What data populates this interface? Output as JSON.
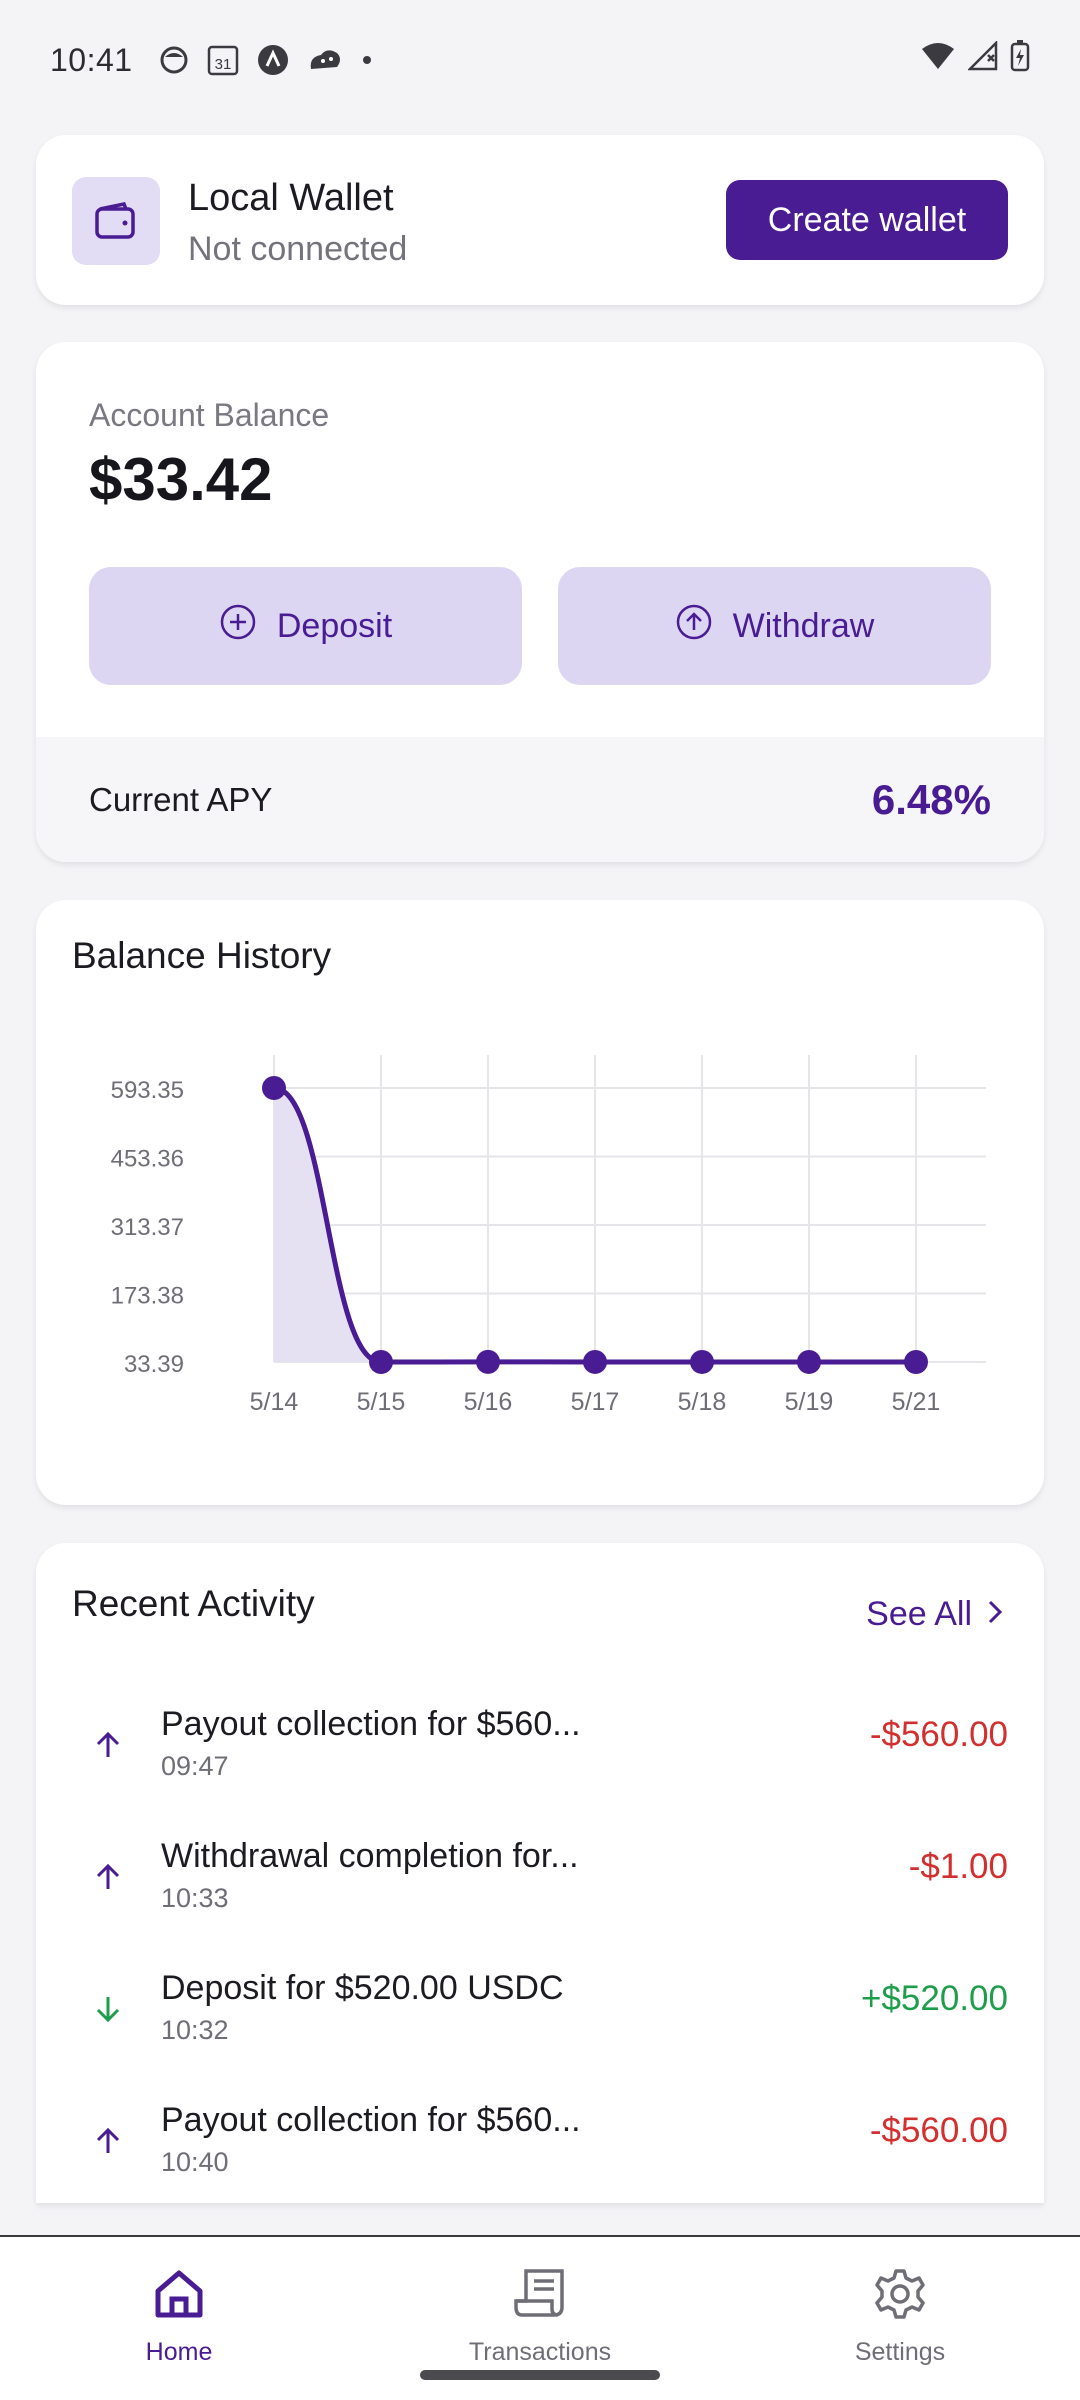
{
  "status_bar": {
    "time": "10:41",
    "calendar_day": "31"
  },
  "wallet": {
    "title": "Local Wallet",
    "status": "Not connected",
    "create_label": "Create wallet",
    "icon": "wallet-icon"
  },
  "balance": {
    "label": "Account Balance",
    "value": "$33.42",
    "deposit_label": "Deposit",
    "withdraw_label": "Withdraw",
    "apy_label": "Current APY",
    "apy_value": "6.48%"
  },
  "balance_history": {
    "title": "Balance History"
  },
  "chart_data": {
    "type": "line",
    "title": "Balance History",
    "categories": [
      "5/14",
      "5/15",
      "5/16",
      "5/17",
      "5/18",
      "5/19",
      "5/21"
    ],
    "series": [
      {
        "values": [
          593.35,
          33.39,
          33.6,
          33.5,
          33.45,
          33.45,
          33.42
        ]
      }
    ],
    "y_ticks": [
      "593.35",
      "453.36",
      "313.37",
      "173.38",
      "33.39"
    ],
    "ylim": [
      33.39,
      593.35
    ],
    "grid": true,
    "color": "#4a1c94",
    "area_fill": "#e6e1f2"
  },
  "activity": {
    "title": "Recent Activity",
    "see_all": "See All",
    "items": [
      {
        "title": "Payout collection for $560...",
        "time": "09:47",
        "amount": "-$560.00",
        "direction": "out"
      },
      {
        "title": "Withdrawal completion for...",
        "time": "10:33",
        "amount": "-$1.00",
        "direction": "out"
      },
      {
        "title": "Deposit for $520.00 USDC",
        "time": "10:32",
        "amount": "+$520.00",
        "direction": "in"
      },
      {
        "title": "Payout collection for $560...",
        "time": "10:40",
        "amount": "-$560.00",
        "direction": "out"
      }
    ]
  },
  "nav": {
    "home": "Home",
    "transactions": "Transactions",
    "settings": "Settings"
  },
  "colors": {
    "accent": "#4a1c94",
    "negative": "#d32f2f",
    "positive": "#1e9e4a"
  }
}
